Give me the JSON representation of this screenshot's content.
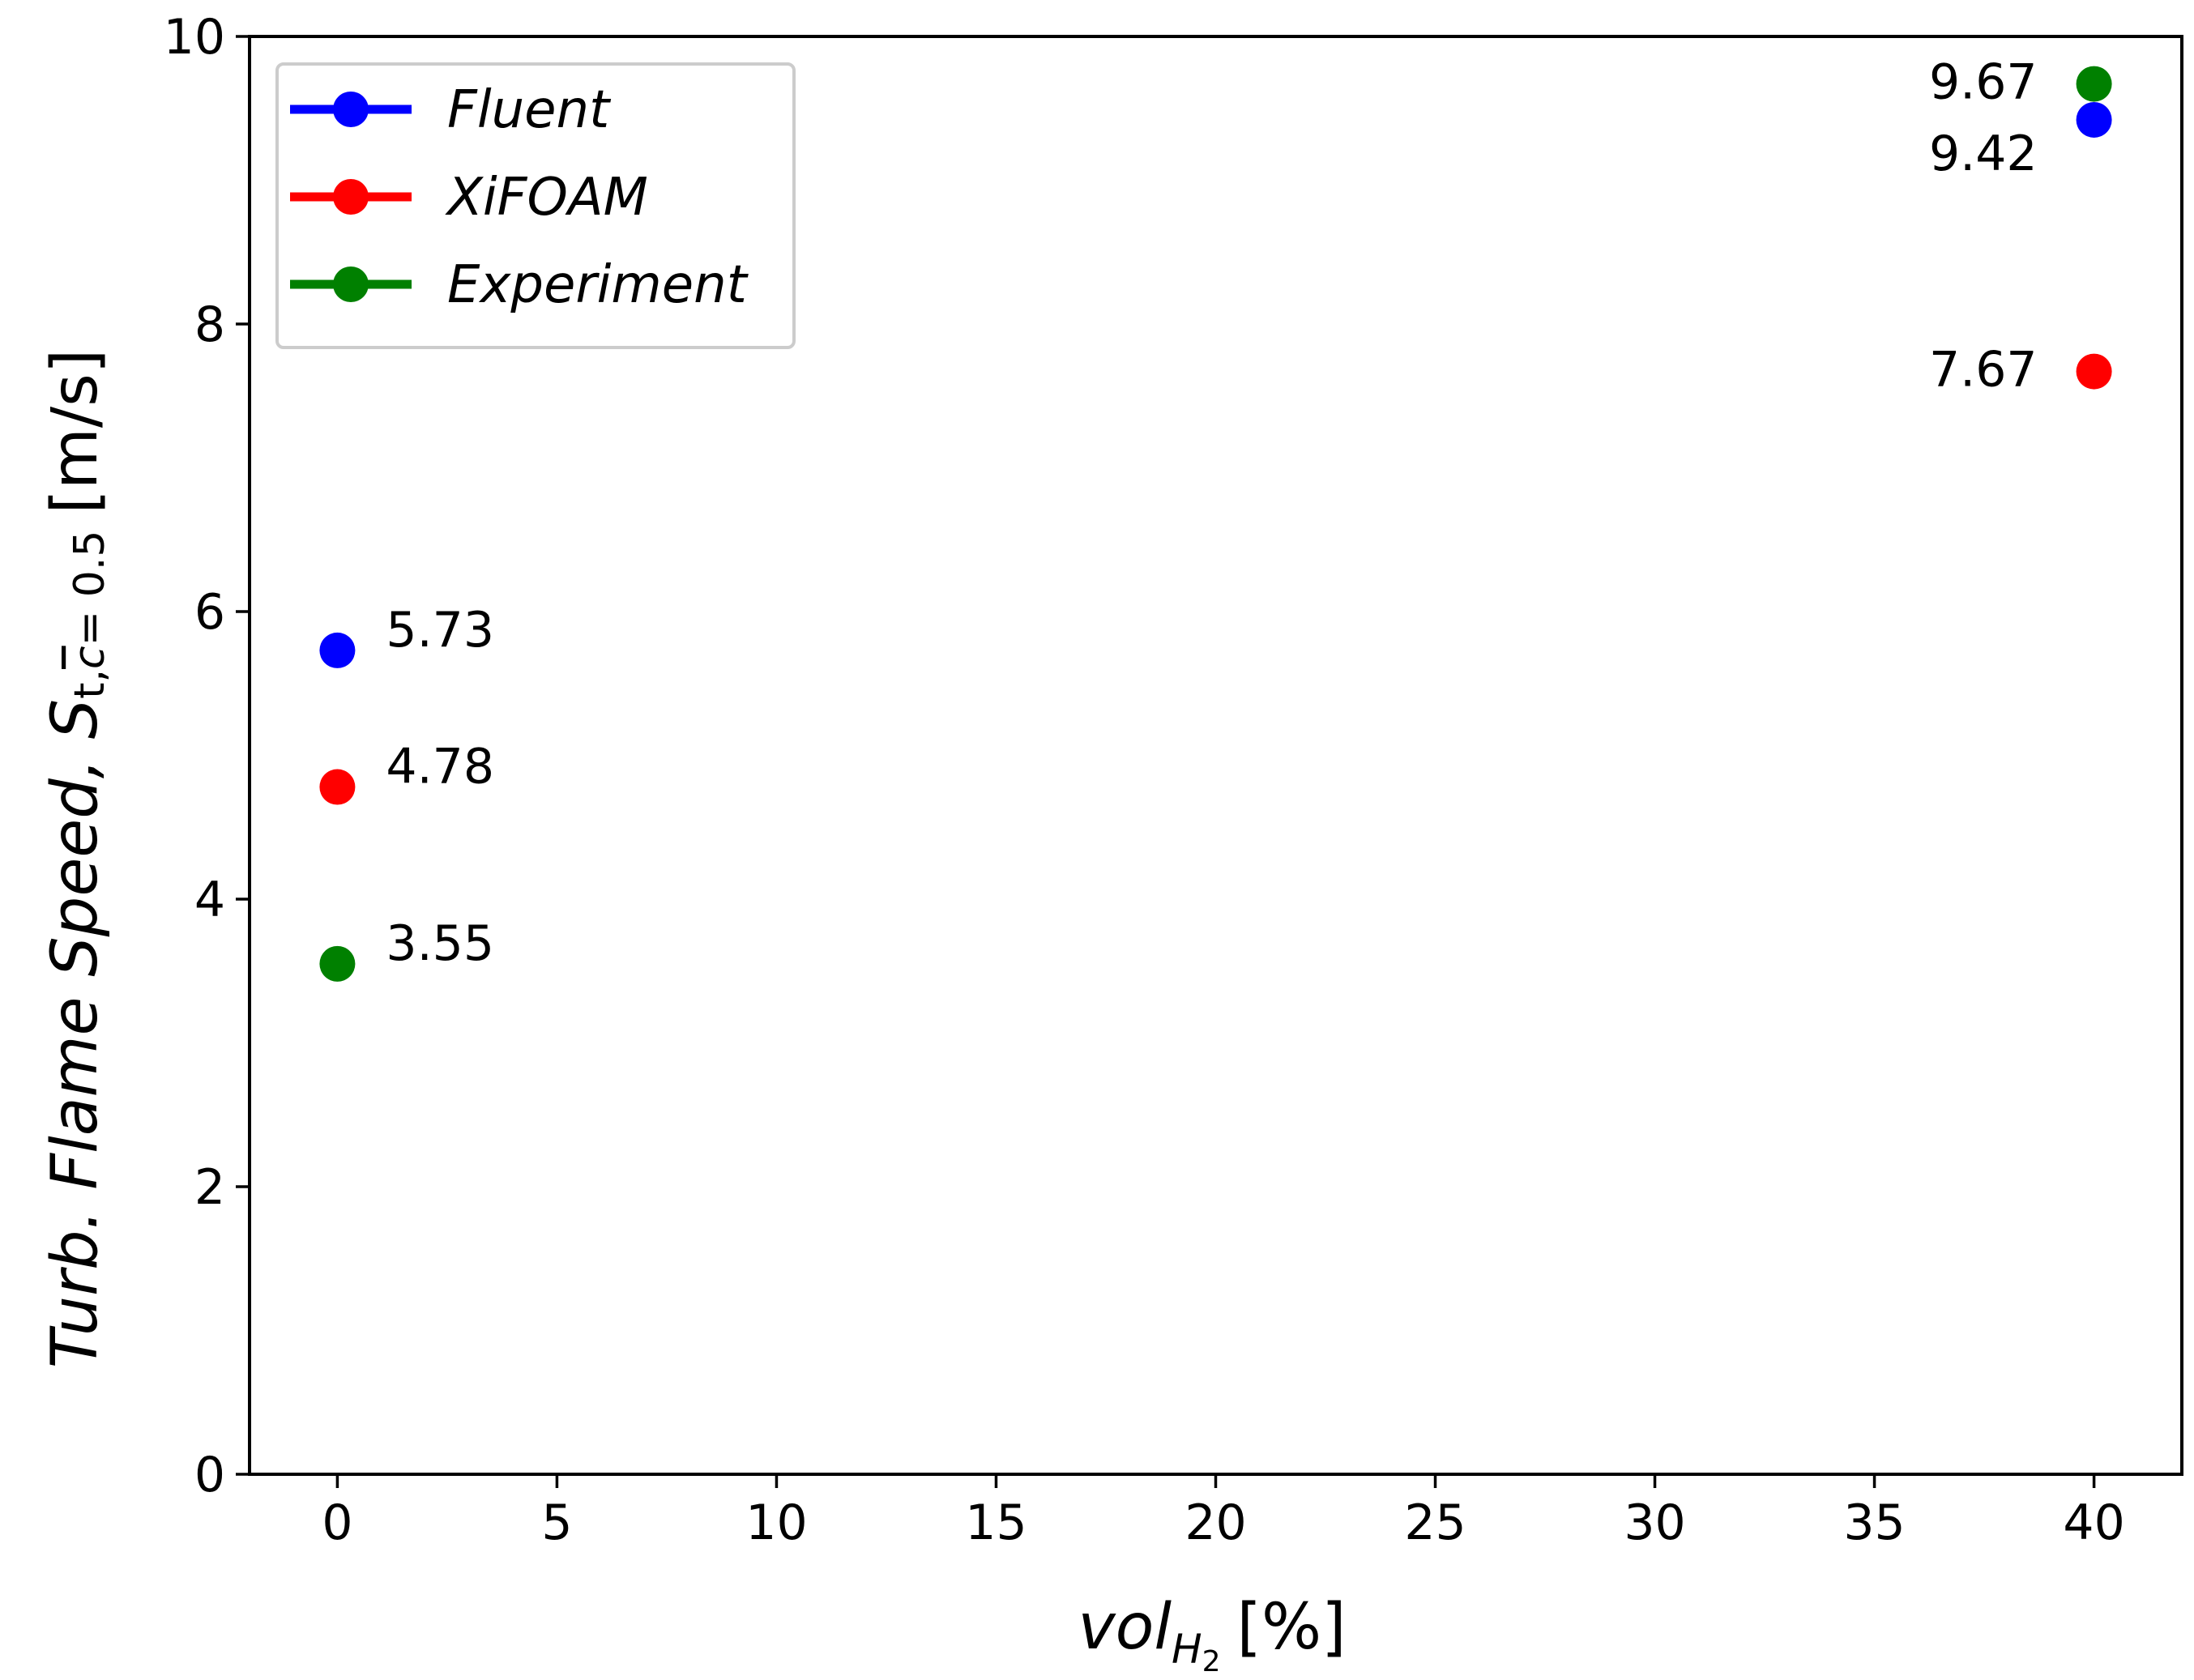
{
  "chart_data": {
    "type": "scatter",
    "title": "",
    "xlabel": {
      "main": "vol",
      "subscript": "H",
      "subsubscript": "2",
      "unit": "[%]"
    },
    "ylabel": {
      "text": "Turb. Flame Speed,",
      "symbol": "S",
      "subscript": "t,",
      "subscript_var": "c",
      "subscript_value": "= 0.5",
      "unit": "[m/s]"
    },
    "xlim": [
      -2,
      42
    ],
    "ylim": [
      0,
      10
    ],
    "xticks": [
      0,
      5,
      10,
      15,
      20,
      25,
      30,
      35,
      40
    ],
    "yticks": [
      0,
      2,
      4,
      6,
      8,
      10
    ],
    "grid": false,
    "legend_position": "top-left",
    "series": [
      {
        "name": "Fluent",
        "color": "#0000ff",
        "points": [
          {
            "x": 0,
            "y": 5.73,
            "label": "5.73",
            "label_side": "right"
          },
          {
            "x": 40,
            "y": 9.42,
            "label": "9.42",
            "label_side": "left-below"
          }
        ]
      },
      {
        "name": "XiFOAM",
        "color": "#ff0000",
        "points": [
          {
            "x": 0,
            "y": 4.78,
            "label": "4.78",
            "label_side": "right"
          },
          {
            "x": 40,
            "y": 7.67,
            "label": "7.67",
            "label_side": "left"
          }
        ]
      },
      {
        "name": "Experiment",
        "color": "#008000",
        "points": [
          {
            "x": 0,
            "y": 3.55,
            "label": "3.55",
            "label_side": "right"
          },
          {
            "x": 40,
            "y": 9.67,
            "label": "9.67",
            "label_side": "left"
          }
        ]
      }
    ]
  }
}
